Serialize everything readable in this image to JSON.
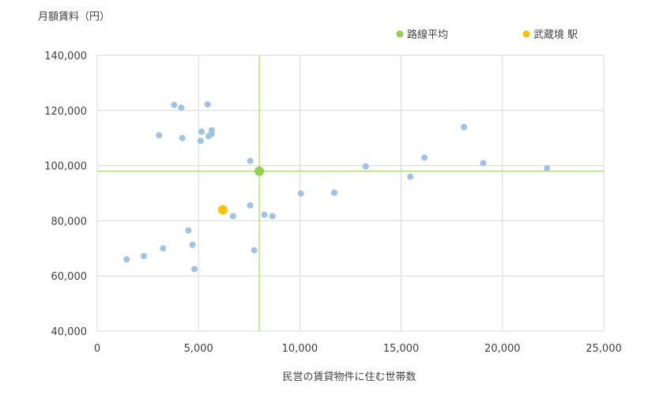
{
  "chart_data": {
    "type": "scatter",
    "title": "",
    "ylabel": "月額賃料（円）",
    "xlabel": "民営の賃貸物件に住む世帯数",
    "xlim": [
      0,
      25000
    ],
    "ylim": [
      40000,
      140000
    ],
    "x_ticks": [
      0,
      5000,
      10000,
      15000,
      20000,
      25000
    ],
    "x_tick_labels": [
      "0",
      "5,000",
      "10,000",
      "15,000",
      "20,000",
      "25,000"
    ],
    "y_ticks": [
      40000,
      60000,
      80000,
      100000,
      120000,
      140000
    ],
    "y_tick_labels": [
      "40,000",
      "60,000",
      "80,000",
      "100,000",
      "120,000",
      "140,000"
    ],
    "grid": "vertical and horizontal major gridlines",
    "legend_position": "top",
    "legend": [
      {
        "label": "路線平均",
        "color": "#92d050"
      },
      {
        "label": "武蔵境 駅",
        "color": "#ffc000"
      }
    ],
    "average_lines": {
      "x": 8000,
      "y": 98000,
      "color": "#92d050"
    },
    "series": [
      {
        "color": "#9dc3e6",
        "points": [
          {
            "x": 1450,
            "y": 66000
          },
          {
            "x": 2300,
            "y": 67200
          },
          {
            "x": 3250,
            "y": 70000
          },
          {
            "x": 3050,
            "y": 111000
          },
          {
            "x": 3800,
            "y": 122000
          },
          {
            "x": 4150,
            "y": 121000
          },
          {
            "x": 4200,
            "y": 110000
          },
          {
            "x": 4500,
            "y": 76500
          },
          {
            "x": 4700,
            "y": 71300
          },
          {
            "x": 4800,
            "y": 62500
          },
          {
            "x": 5100,
            "y": 109000
          },
          {
            "x": 5150,
            "y": 112300
          },
          {
            "x": 5450,
            "y": 122200
          },
          {
            "x": 5500,
            "y": 110700
          },
          {
            "x": 5650,
            "y": 112800
          },
          {
            "x": 5650,
            "y": 111500
          },
          {
            "x": 6700,
            "y": 81700
          },
          {
            "x": 7550,
            "y": 101700
          },
          {
            "x": 7550,
            "y": 85600
          },
          {
            "x": 7750,
            "y": 69300
          },
          {
            "x": 8250,
            "y": 82200
          },
          {
            "x": 8650,
            "y": 81700
          },
          {
            "x": 10050,
            "y": 89900
          },
          {
            "x": 11700,
            "y": 90200
          },
          {
            "x": 13250,
            "y": 99700
          },
          {
            "x": 15450,
            "y": 96000
          },
          {
            "x": 16150,
            "y": 102900
          },
          {
            "x": 18100,
            "y": 114000
          },
          {
            "x": 19050,
            "y": 100900
          },
          {
            "x": 22200,
            "y": 99100
          }
        ]
      },
      {
        "name": "路線平均",
        "color": "#92d050",
        "points": [
          {
            "x": 8000,
            "y": 98000
          }
        ]
      },
      {
        "name": "武蔵境 駅",
        "color": "#ffc000",
        "points": [
          {
            "x": 6200,
            "y": 84000
          }
        ]
      }
    ]
  }
}
